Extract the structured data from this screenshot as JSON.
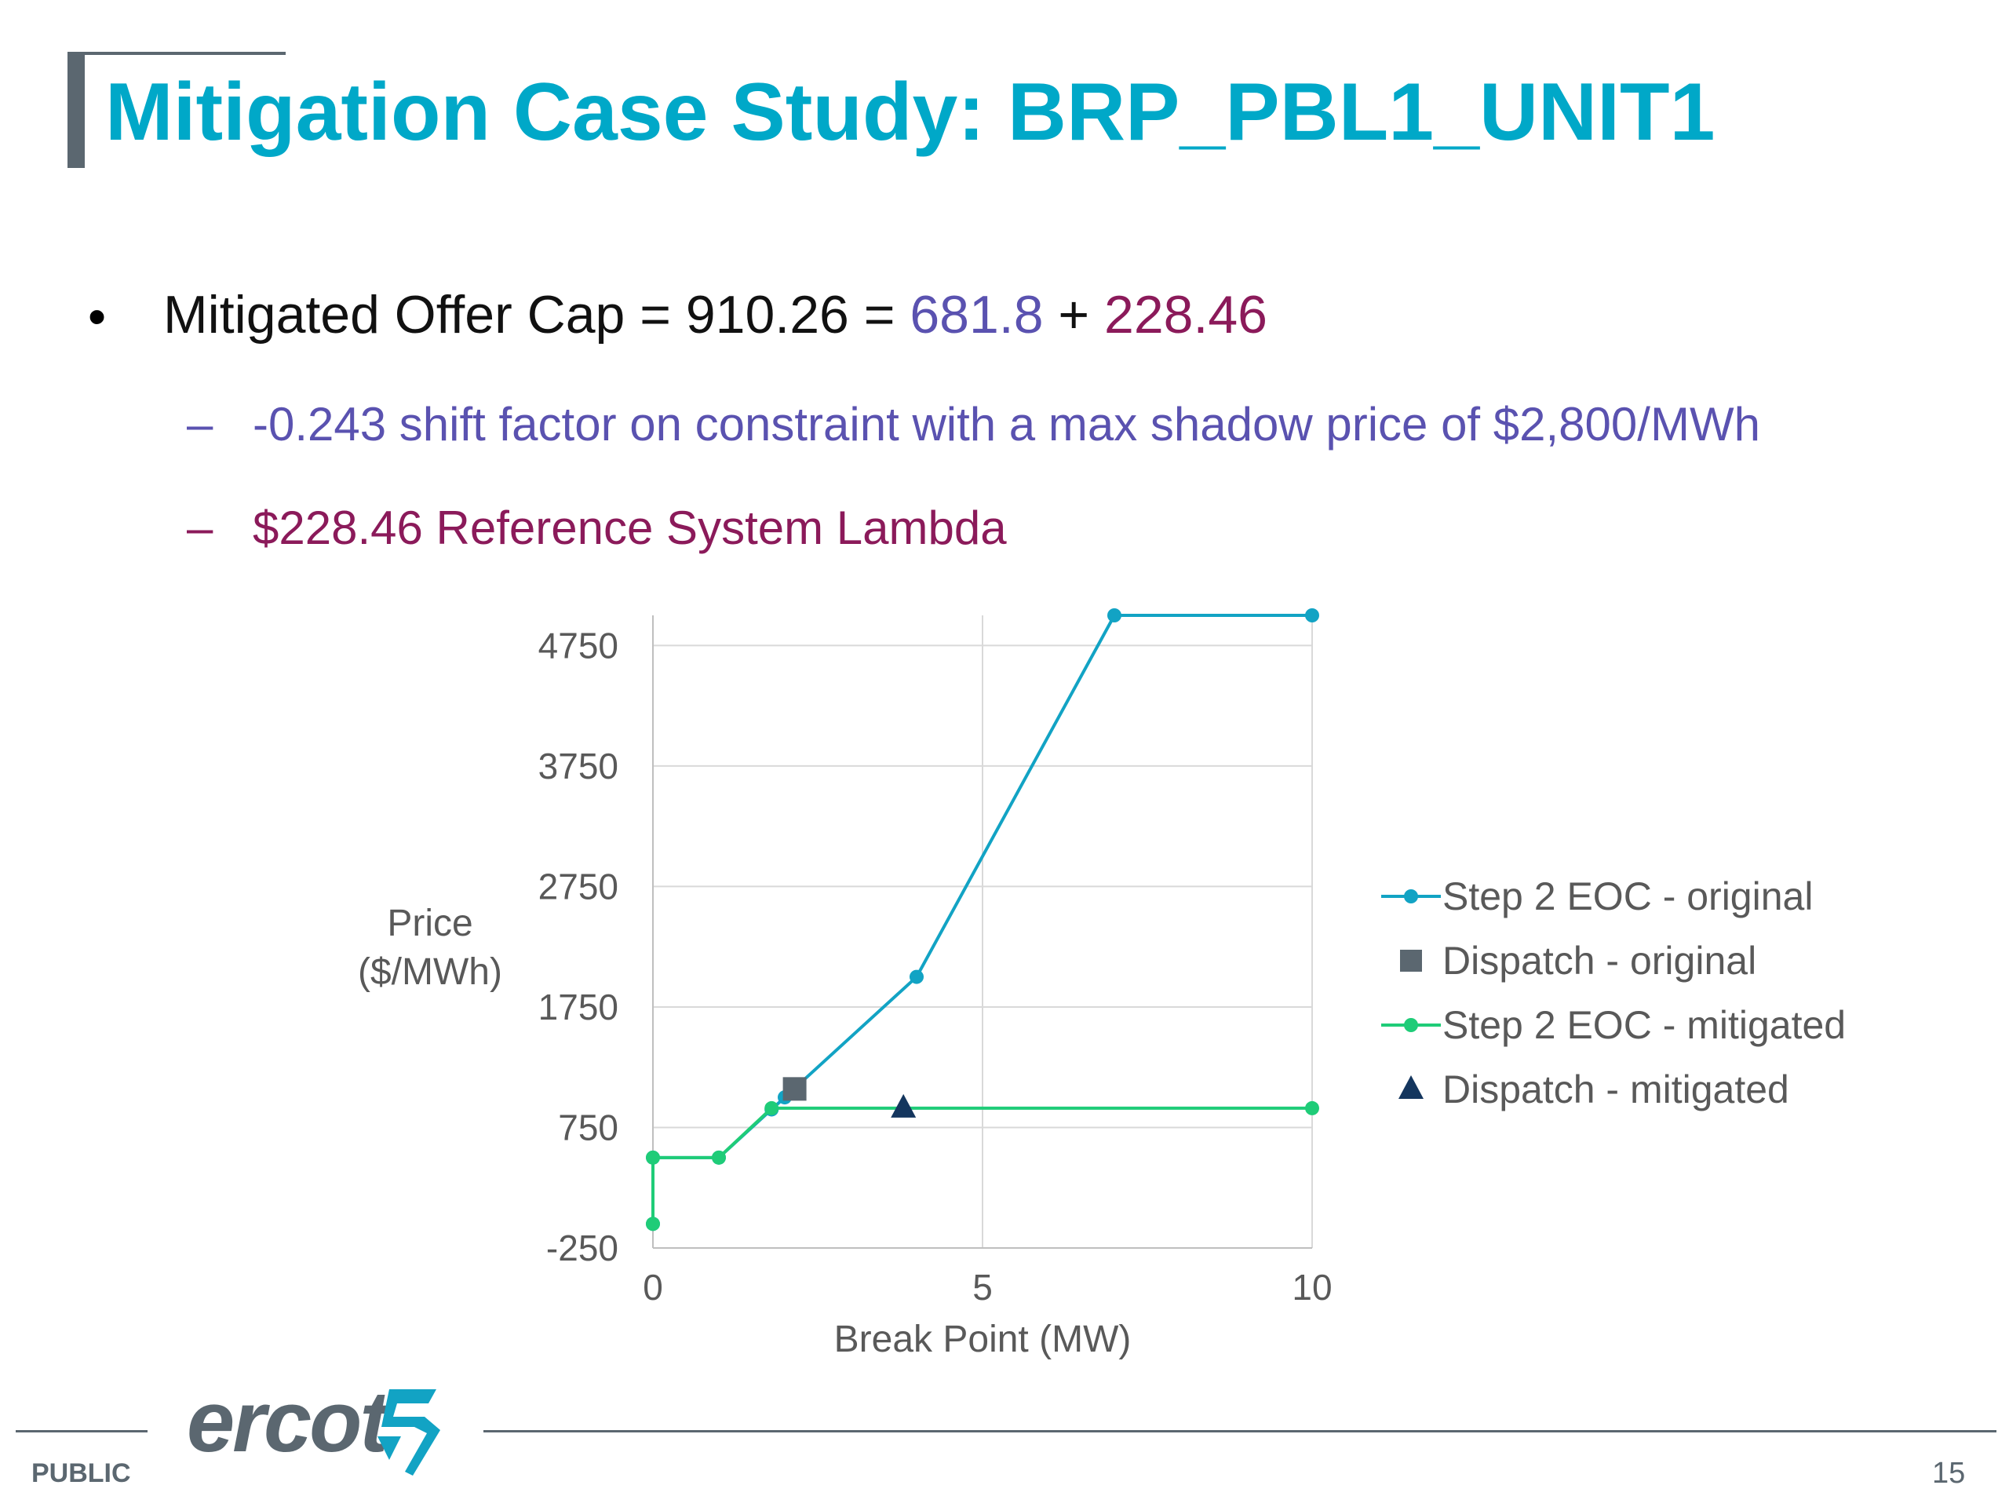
{
  "slide": {
    "title": "Mitigation Case Study: BRP_PBL1_UNIT1",
    "bullet": {
      "prefix": "Mitigated Offer Cap = 910.26 = ",
      "term1": "681.8",
      "plus": " + ",
      "term2": "228.46"
    },
    "sub_items": [
      "-0.243 shift factor on constraint with a max shadow price of $2,800/MWh",
      "$228.46 Reference System Lambda"
    ],
    "dash": "–",
    "bullet_glyph": "•"
  },
  "footer": {
    "classification": "PUBLIC",
    "page_number": "15",
    "logo_text": "ercot"
  },
  "colors": {
    "title": "#00a8c8",
    "purple": "#5a52b0",
    "maroon": "#8b1a5a",
    "series_original": "#12a3c4",
    "series_mitigated": "#1fcc78",
    "dispatch_original": "#5b6770",
    "dispatch_mitigated": "#14365e",
    "grid": "#d9d9d9",
    "axis_text": "#595959"
  },
  "chart_data": {
    "type": "scatter",
    "xlabel": "Break Point (MW)",
    "ylabel": "Price ($/MWh)",
    "xlim": [
      0,
      10
    ],
    "ylim": [
      -250,
      5000
    ],
    "xticks": [
      0,
      5,
      10
    ],
    "yticks": [
      -250,
      750,
      1750,
      2750,
      3750,
      4750
    ],
    "grid": true,
    "legend": "right",
    "series": [
      {
        "name": "Step 2 EOC - original",
        "style": "line-markers",
        "points": [
          [
            0,
            -50
          ],
          [
            0,
            500
          ],
          [
            1,
            500
          ],
          [
            1.8,
            900
          ],
          [
            2,
            1000
          ],
          [
            4,
            2000
          ],
          [
            7,
            5000
          ],
          [
            10,
            5000
          ]
        ]
      },
      {
        "name": "Dispatch - original",
        "style": "square",
        "points": [
          [
            2.15,
            1070
          ]
        ]
      },
      {
        "name": "Step 2 EOC - mitigated",
        "style": "line-markers",
        "points": [
          [
            0,
            -50
          ],
          [
            0,
            500
          ],
          [
            1,
            500
          ],
          [
            1.8,
            910
          ],
          [
            10,
            910
          ]
        ]
      },
      {
        "name": "Dispatch - mitigated",
        "style": "triangle",
        "points": [
          [
            3.8,
            910
          ]
        ]
      }
    ]
  }
}
